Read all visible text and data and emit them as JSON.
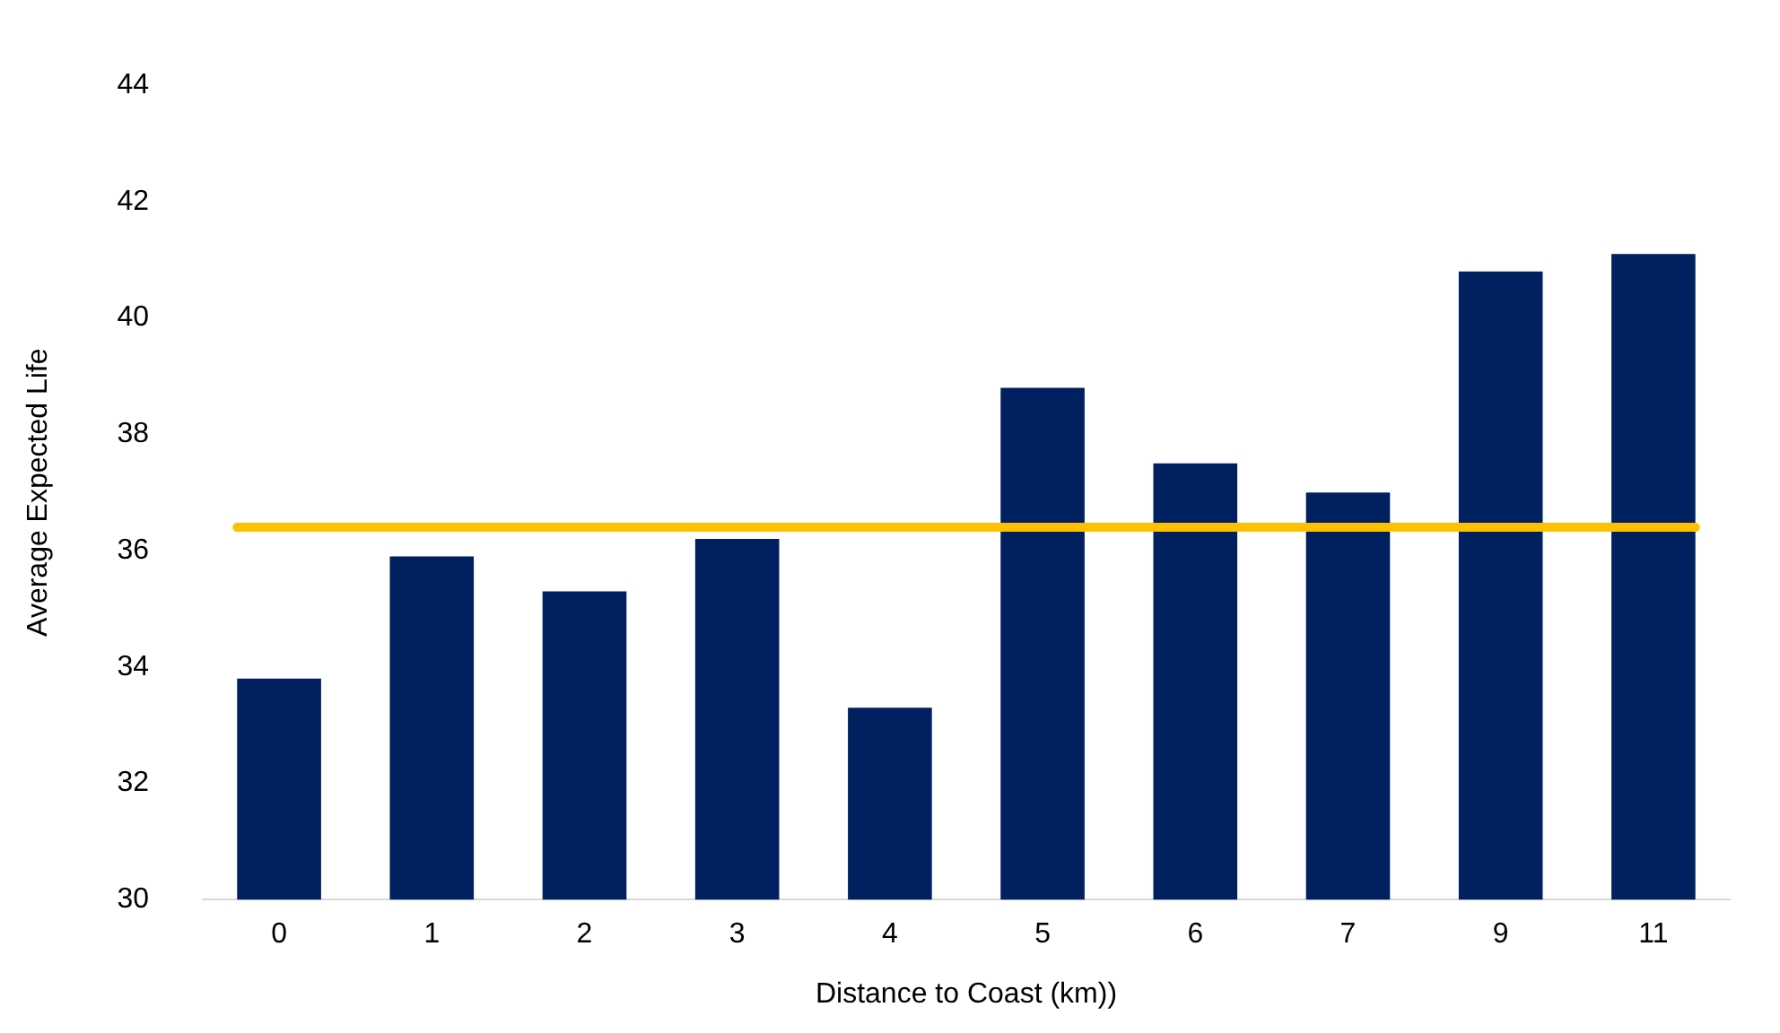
{
  "chart_data": {
    "type": "bar",
    "xlabel": "Distance to Coast (km))",
    "ylabel": "Average Expected Life",
    "categories": [
      "0",
      "1",
      "2",
      "3",
      "4",
      "5",
      "6",
      "7",
      "9",
      "11"
    ],
    "values": [
      33.8,
      35.9,
      35.3,
      36.2,
      33.3,
      38.8,
      37.5,
      37.0,
      40.8,
      41.1
    ],
    "color": "#002060",
    "ylim": [
      30,
      44
    ],
    "yticks": [
      30,
      32,
      34,
      36,
      38,
      40,
      42,
      44
    ],
    "grid": false,
    "legend": false,
    "ref_lines": [
      {
        "axis": "y",
        "value": 36.4,
        "color": "#ffc000"
      }
    ]
  }
}
